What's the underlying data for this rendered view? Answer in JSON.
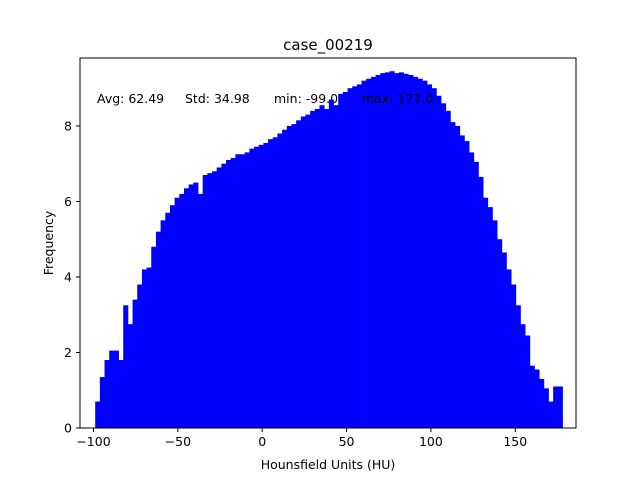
{
  "chart_data": {
    "type": "bar",
    "title": "case_00219",
    "xlabel": "Hounsfield Units (HU)",
    "ylabel": "Frequency",
    "xlim": [
      -108,
      186
    ],
    "ylim": [
      0,
      9.8
    ],
    "xticks": [
      -100,
      -50,
      0,
      50,
      100,
      150
    ],
    "yticks": [
      0,
      2,
      4,
      6,
      8
    ],
    "bar_color": "#0000ff",
    "bin_start": -99.0,
    "bin_width": 2.77,
    "values": [
      0.7,
      1.35,
      1.8,
      2.05,
      2.05,
      1.8,
      3.25,
      2.75,
      3.4,
      3.8,
      4.2,
      4.25,
      4.8,
      5.2,
      5.5,
      5.7,
      5.9,
      6.1,
      6.2,
      6.35,
      6.45,
      6.5,
      6.2,
      6.7,
      6.75,
      6.8,
      6.9,
      7.0,
      7.1,
      7.15,
      7.25,
      7.25,
      7.3,
      7.4,
      7.45,
      7.5,
      7.55,
      7.65,
      7.7,
      7.8,
      7.9,
      8.0,
      8.05,
      8.15,
      8.25,
      8.3,
      8.4,
      8.45,
      8.55,
      8.45,
      8.7,
      8.55,
      8.85,
      8.9,
      9.0,
      9.05,
      9.1,
      9.2,
      9.25,
      9.3,
      9.35,
      9.4,
      9.42,
      9.45,
      9.4,
      9.42,
      9.38,
      9.35,
      9.3,
      9.25,
      9.2,
      9.1,
      9.0,
      8.8,
      8.6,
      8.4,
      8.1,
      8.0,
      7.75,
      7.6,
      7.3,
      7.05,
      6.65,
      6.1,
      5.85,
      5.5,
      5.0,
      4.65,
      4.2,
      3.8,
      3.25,
      2.75,
      2.45,
      1.65,
      1.55,
      1.3,
      1.05,
      0.7,
      1.1,
      1.1
    ],
    "annotation": {
      "avg_label": "Avg: 62.49",
      "std_label": "Std: 34.98",
      "min_label": "min: -99.0",
      "max_label": "max: 177.0"
    }
  }
}
